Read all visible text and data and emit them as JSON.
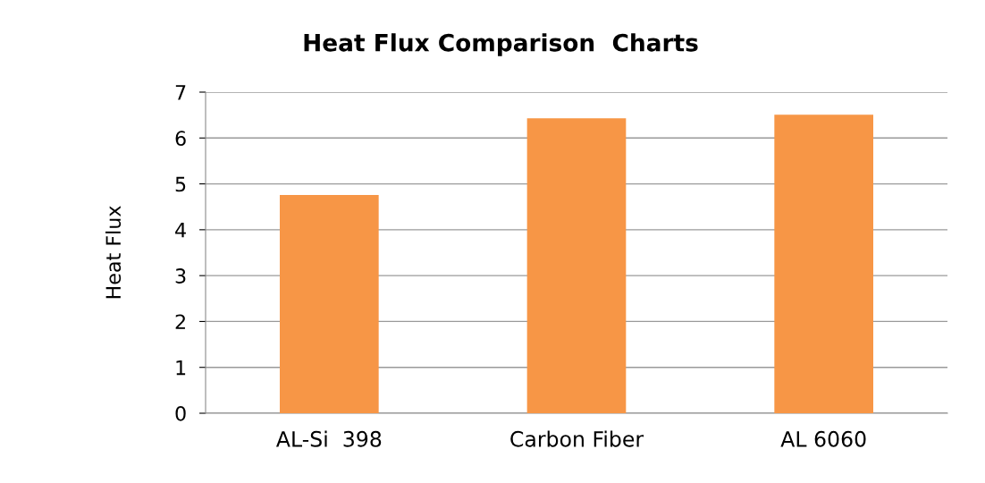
{
  "chart_data": {
    "type": "bar",
    "title": "Heat Flux Comparison  Charts",
    "ylabel": "Heat Flux",
    "categories": [
      "AL-Si  398",
      "Carbon Fiber",
      "AL 6060"
    ],
    "values": [
      4.76,
      6.43,
      6.51
    ],
    "color": "#f79646",
    "ylim": [
      0,
      7
    ],
    "yticks": [
      0,
      1,
      2,
      3,
      4,
      5,
      6,
      7
    ],
    "grid": "y",
    "legend": false
  }
}
